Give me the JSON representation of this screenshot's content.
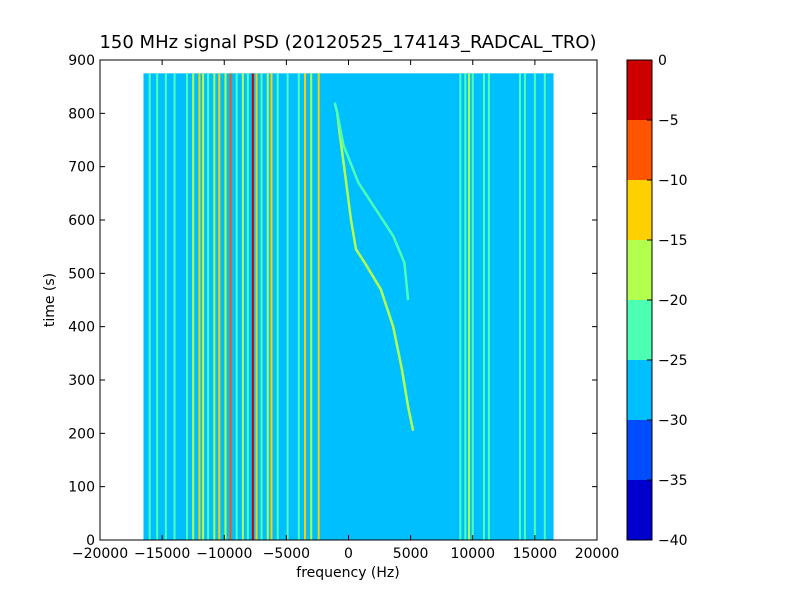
{
  "chart_data": {
    "type": "heatmap",
    "title": "150 MHz signal PSD (20120525_174143_RADCAL_TRO)",
    "xlabel": "frequency (Hz)",
    "ylabel": "time (s)",
    "xlim": [
      -20000,
      20000
    ],
    "ylim": [
      0,
      900
    ],
    "xticks": [
      -20000,
      -15000,
      -10000,
      -5000,
      0,
      5000,
      10000,
      15000,
      20000
    ],
    "yticks": [
      0,
      100,
      200,
      300,
      400,
      500,
      600,
      700,
      800,
      900
    ],
    "data_extent": {
      "frequency": [
        -16500,
        16500
      ],
      "time": [
        0,
        875
      ]
    },
    "background_level": -27.5,
    "colorbar": {
      "ticks": [
        0,
        -5,
        -10,
        -15,
        -20,
        -25,
        -30,
        -35,
        -40
      ],
      "levels": [
        {
          "range": [
            -40,
            -35
          ],
          "color": "#0000cd"
        },
        {
          "range": [
            -35,
            -30
          ],
          "color": "#004cff"
        },
        {
          "range": [
            -30,
            -25
          ],
          "color": "#00bfff"
        },
        {
          "range": [
            -25,
            -20
          ],
          "color": "#4dffb3"
        },
        {
          "range": [
            -20,
            -15
          ],
          "color": "#b3ff4d"
        },
        {
          "range": [
            -15,
            -10
          ],
          "color": "#ffd000"
        },
        {
          "range": [
            -10,
            -5
          ],
          "color": "#ff5500"
        },
        {
          "range": [
            -5,
            0
          ],
          "color": "#cd0000"
        }
      ]
    },
    "lines": [
      {
        "f": -16000,
        "level": -22
      },
      {
        "f": -15400,
        "level": -22
      },
      {
        "f": -14700,
        "level": -22
      },
      {
        "f": -14000,
        "level": -22
      },
      {
        "f": -13000,
        "level": -22
      },
      {
        "f": -12500,
        "level": -18
      },
      {
        "f": -12000,
        "level": -12
      },
      {
        "f": -11700,
        "level": -18
      },
      {
        "f": -11300,
        "level": -22
      },
      {
        "f": -10800,
        "level": -18
      },
      {
        "f": -10400,
        "level": -12
      },
      {
        "f": -9900,
        "level": -18
      },
      {
        "f": -9500,
        "level": -7
      },
      {
        "f": -9000,
        "level": -22
      },
      {
        "f": -8500,
        "level": -18
      },
      {
        "f": -8100,
        "level": -22
      },
      {
        "f": -7700,
        "level": -2
      },
      {
        "f": -7400,
        "level": -12
      },
      {
        "f": -7000,
        "level": -22
      },
      {
        "f": -6500,
        "level": -18
      },
      {
        "f": -6200,
        "level": -12
      },
      {
        "f": -5700,
        "level": -22
      },
      {
        "f": -4900,
        "level": -22
      },
      {
        "f": -4000,
        "level": -22
      },
      {
        "f": -3500,
        "level": -12
      },
      {
        "f": -3000,
        "level": -18
      },
      {
        "f": -2400,
        "level": -12
      },
      {
        "f": 9000,
        "level": -22
      },
      {
        "f": 9400,
        "level": -22
      },
      {
        "f": 9700,
        "level": -18
      },
      {
        "f": 10000,
        "level": -22
      },
      {
        "f": 10900,
        "level": -22
      },
      {
        "f": 11300,
        "level": -22
      },
      {
        "f": 13800,
        "level": -22
      },
      {
        "f": 14200,
        "level": -22
      },
      {
        "f": 15000,
        "level": -22
      },
      {
        "f": 15800,
        "level": -22
      }
    ],
    "curves": [
      {
        "name": "",
        "level": -17,
        "points": [
          [
            5200,
            205
          ],
          [
            4800,
            250
          ],
          [
            4300,
            320
          ],
          [
            3600,
            400
          ],
          [
            2600,
            470
          ],
          [
            1300,
            520
          ],
          [
            600,
            545
          ],
          [
            200,
            600
          ],
          [
            -300,
            690
          ],
          [
            -700,
            760
          ],
          [
            -900,
            800
          ]
        ]
      },
      {
        "name": "",
        "level": -22,
        "points": [
          [
            4800,
            450
          ],
          [
            4500,
            520
          ],
          [
            3600,
            570
          ],
          [
            2200,
            620
          ],
          [
            800,
            670
          ],
          [
            -400,
            740
          ],
          [
            -900,
            800
          ],
          [
            -1100,
            820
          ]
        ]
      }
    ]
  }
}
